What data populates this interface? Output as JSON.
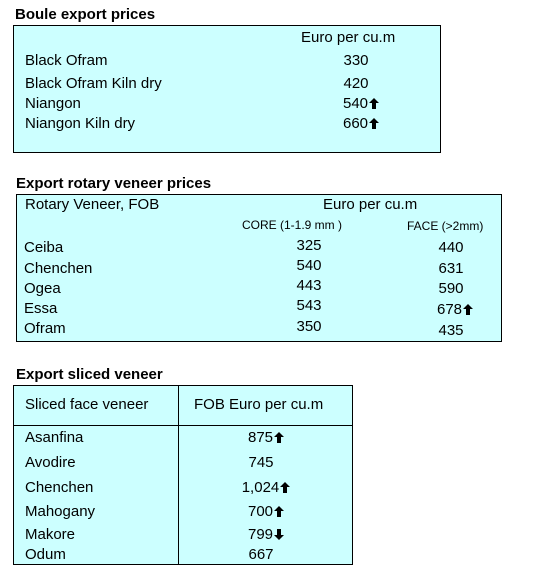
{
  "boule": {
    "title": "Boule export prices",
    "header": "Euro per cu.m",
    "rows": [
      {
        "label": "Black Ofram",
        "value": "330",
        "trend": ""
      },
      {
        "label": "Black Ofram  Kiln dry",
        "value": "420",
        "trend": ""
      },
      {
        "label": "Niangon",
        "value": "540",
        "trend": "up"
      },
      {
        "label": "Niangon Kiln dry",
        "value": "660",
        "trend": "up"
      }
    ]
  },
  "rotary": {
    "title": "Export rotary veneer prices",
    "header_left": "Rotary Veneer,  FOB",
    "header_right": "Euro  per cu.m",
    "col_core": "CORE (1-1.9 mm )",
    "col_face": "FACE (>2mm)",
    "rows": [
      {
        "label": "Ceiba",
        "core": "325",
        "face": "440",
        "face_trend": ""
      },
      {
        "label": "Chenchen",
        "core": "540",
        "face": "631",
        "face_trend": ""
      },
      {
        "label": "Ogea",
        "core": "443",
        "face": "590",
        "face_trend": ""
      },
      {
        "label": "Essa",
        "core": "543",
        "face": "678",
        "face_trend": "up"
      },
      {
        "label": "Ofram",
        "core": "350",
        "face": "435",
        "face_trend": ""
      }
    ]
  },
  "sliced": {
    "title": "Export sliced veneer",
    "col_left": "Sliced face veneer",
    "col_right": "FOB Euro per cu.m",
    "rows": [
      {
        "label": "Asanfina",
        "value": "875",
        "trend": "up"
      },
      {
        "label": "Avodire",
        "value": "745",
        "trend": ""
      },
      {
        "label": "Chenchen",
        "value": "1,024",
        "trend": "up"
      },
      {
        "label": "Mahogany",
        "value": "700",
        "trend": "up"
      },
      {
        "label": "Makore",
        "value": "799",
        "trend": "down"
      },
      {
        "label": "Odum",
        "value": "667",
        "trend": ""
      }
    ]
  }
}
